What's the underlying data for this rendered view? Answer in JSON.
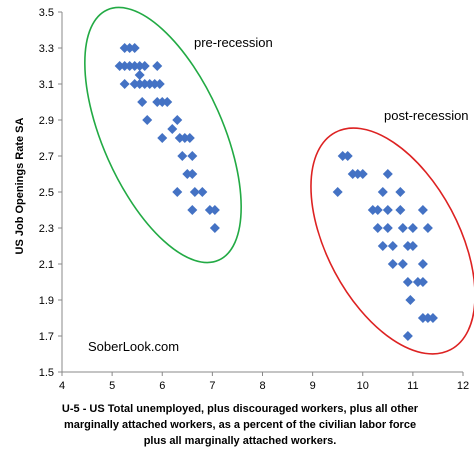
{
  "chart_data": {
    "type": "scatter",
    "ylabel": "US Job Openings Rate SA",
    "xlabel_lines": [
      "U-5 - US Total unemployed, plus discouraged workers, plus all other",
      "marginally attached workers, as a percent of the civilian labor force",
      "plus all marginally attached workers."
    ],
    "xlim": [
      4,
      12
    ],
    "ylim": [
      1.5,
      3.5
    ],
    "x_ticks": [
      4,
      5,
      6,
      7,
      8,
      9,
      10,
      11,
      12
    ],
    "y_ticks": [
      "1.5",
      "1.7",
      "1.9",
      "2.1",
      "2.3",
      "2.5",
      "2.7",
      "2.9",
      "3.1",
      "3.3",
      "3.5"
    ],
    "grid": false,
    "legend": "none",
    "marker_color": "#4472c4",
    "series": [
      {
        "points": [
          [
            5.25,
            3.3
          ],
          [
            5.35,
            3.3
          ],
          [
            5.45,
            3.3
          ],
          [
            5.15,
            3.2
          ],
          [
            5.25,
            3.2
          ],
          [
            5.35,
            3.2
          ],
          [
            5.45,
            3.2
          ],
          [
            5.55,
            3.2
          ],
          [
            5.65,
            3.2
          ],
          [
            5.9,
            3.2
          ],
          [
            5.55,
            3.15
          ],
          [
            5.25,
            3.1
          ],
          [
            5.45,
            3.1
          ],
          [
            5.55,
            3.1
          ],
          [
            5.65,
            3.1
          ],
          [
            5.75,
            3.1
          ],
          [
            5.85,
            3.1
          ],
          [
            5.95,
            3.1
          ],
          [
            5.6,
            3.0
          ],
          [
            5.9,
            3.0
          ],
          [
            6.0,
            3.0
          ],
          [
            6.1,
            3.0
          ],
          [
            5.7,
            2.9
          ],
          [
            6.3,
            2.9
          ],
          [
            6.2,
            2.85
          ],
          [
            6.0,
            2.8
          ],
          [
            6.35,
            2.8
          ],
          [
            6.45,
            2.8
          ],
          [
            6.55,
            2.8
          ],
          [
            6.4,
            2.7
          ],
          [
            6.6,
            2.7
          ],
          [
            6.5,
            2.6
          ],
          [
            6.6,
            2.6
          ],
          [
            6.3,
            2.5
          ],
          [
            6.65,
            2.5
          ],
          [
            6.8,
            2.5
          ],
          [
            6.6,
            2.4
          ],
          [
            6.95,
            2.4
          ],
          [
            7.05,
            2.4
          ],
          [
            7.05,
            2.3
          ]
        ]
      },
      {
        "points": [
          [
            9.6,
            2.7
          ],
          [
            9.7,
            2.7
          ],
          [
            9.8,
            2.6
          ],
          [
            9.9,
            2.6
          ],
          [
            10.0,
            2.6
          ],
          [
            10.5,
            2.6
          ],
          [
            9.5,
            2.5
          ],
          [
            10.4,
            2.5
          ],
          [
            10.75,
            2.5
          ],
          [
            10.2,
            2.4
          ],
          [
            10.3,
            2.4
          ],
          [
            10.5,
            2.4
          ],
          [
            10.75,
            2.4
          ],
          [
            11.2,
            2.4
          ],
          [
            10.3,
            2.3
          ],
          [
            10.5,
            2.3
          ],
          [
            10.8,
            2.3
          ],
          [
            11.0,
            2.3
          ],
          [
            11.3,
            2.3
          ],
          [
            10.4,
            2.2
          ],
          [
            10.6,
            2.2
          ],
          [
            10.9,
            2.2
          ],
          [
            11.0,
            2.2
          ],
          [
            10.6,
            2.1
          ],
          [
            10.8,
            2.1
          ],
          [
            11.2,
            2.1
          ],
          [
            10.9,
            2.0
          ],
          [
            11.1,
            2.0
          ],
          [
            11.2,
            2.0
          ],
          [
            10.95,
            1.9
          ],
          [
            11.2,
            1.8
          ],
          [
            11.3,
            1.8
          ],
          [
            11.4,
            1.8
          ],
          [
            10.9,
            1.7
          ]
        ]
      }
    ],
    "annotations": [
      "pre-recession",
      "post-recession"
    ],
    "watermark": "SoberLook.com"
  }
}
